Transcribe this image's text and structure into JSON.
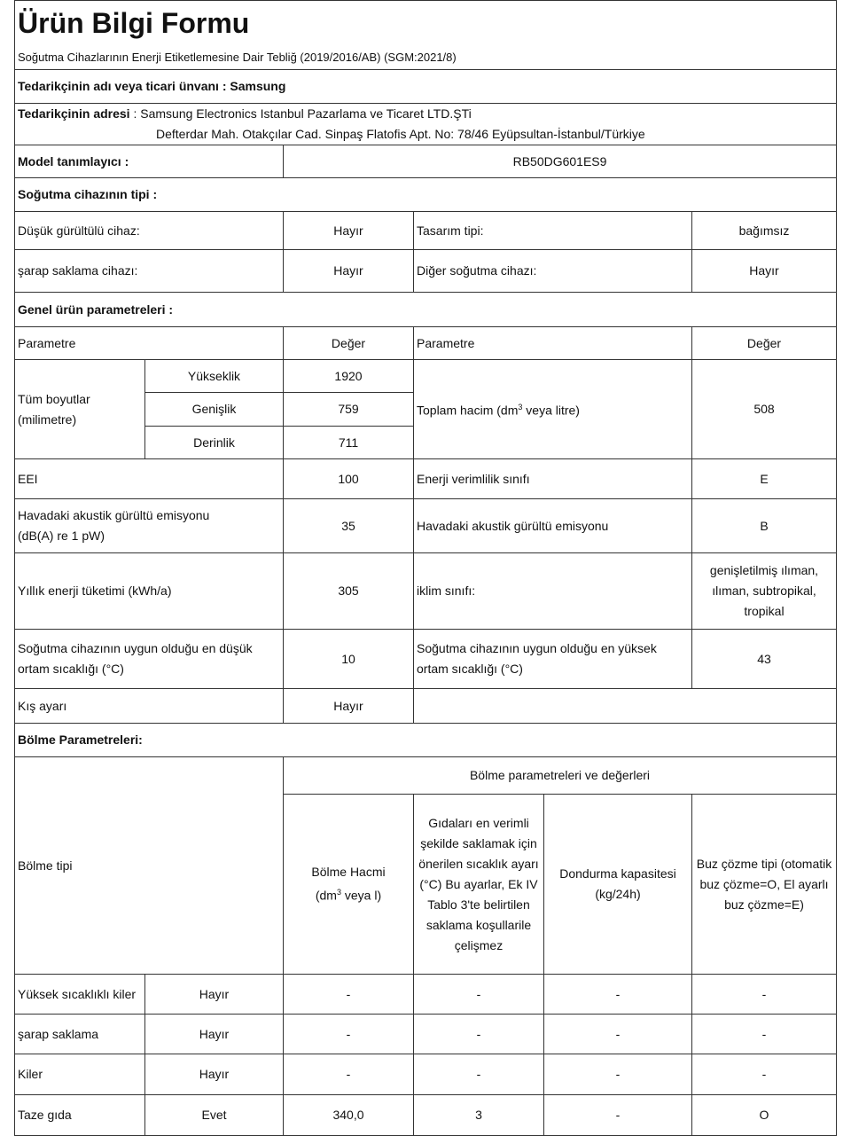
{
  "title": "Ürün Bilgi Formu",
  "subtitle": "Soğutma Cihazlarının Enerji Etiketlemesine Dair Tebliğ (2019/2016/AB) (SGM:2021/8)",
  "supplier_name": "Tedarikçinin adı veya ticari ünvanı : Samsung",
  "supplier_address_label": "Tedarikçinin adresi",
  "supplier_address_line1": " : Samsung Electronics Istanbul Pazarlama ve Ticaret LTD.ŞTi",
  "supplier_address_line2": "Defterdar Mah. Otakçılar Cad. Sinpaş Flatofis Apt. No: 78/46 Eyüpsultan-İstanbul/Türkiye",
  "model_label": "Model tanımlayıcı :",
  "model_value": "RB50DG601ES9",
  "type_header": "Soğutma cihazının tipi :",
  "type": {
    "low_noise_label": "Düşük gürültülü cihaz:",
    "low_noise": "Hayır",
    "design_label": "Tasarım tipi:",
    "design": "bağımsız",
    "wine_label": "şarap saklama cihazı:",
    "wine": "Hayır",
    "other_label": "Diğer soğutma cihazı:",
    "other": "Hayır"
  },
  "general_header": "Genel ürün parametreleri :",
  "general": {
    "param": "Parametre",
    "value": "Değer",
    "dims_label": "Tüm boyutlar",
    "dims_unit": "(milimetre)",
    "height_label": "Yükseklik",
    "height": "1920",
    "width_label": "Genişlik",
    "width": "759",
    "depth_label": "Derinlik",
    "depth": "711",
    "volume_label": "Toplam hacim (dm",
    "volume_label2": " veya litre)",
    "volume": "508",
    "eei_label": "EEI",
    "eei": "100",
    "class_label": "Enerji verimlilik sınıfı",
    "class": "E",
    "noise_label1": "Havadaki akustik gürültü emisyonu",
    "noise_label2": "(dB(A) re 1 pW)",
    "noise": "35",
    "noise_class_label": "Havadaki akustik gürültü emisyonu",
    "noise_class": "B",
    "annual_label": "Yıllık enerji tüketimi (kWh/a)",
    "annual": "305",
    "climate_label": "iklim sınıfı:",
    "climate": "genişletilmiş ılıman, ılıman, subtropikal, tropikal",
    "min_temp_label": "Soğutma cihazının uygun olduğu en düşük ortam sıcaklığı (°C)",
    "min_temp": "10",
    "max_temp_label": "Soğutma cihazının uygun olduğu en yüksek ortam sıcaklığı (°C)",
    "max_temp": "43",
    "winter_label": "Kış ayarı",
    "winter": "Hayır"
  },
  "compartment_header": "Bölme Parametreleri:",
  "compartment": {
    "type_label": "Bölme tipi",
    "group_header": "Bölme parametreleri ve değerleri",
    "col_volume": "Bölme Hacmi",
    "col_volume2": " veya l)",
    "col_temp": "Gıdaları en verimli şekilde saklamak için önerilen sıcaklık ayarı (°C) Bu ayarlar, Ek IV Tablo 3'te belirtilen saklama koşullarile çelişmez",
    "col_freeze": "Dondurma kapasitesi (kg/24h)",
    "col_defrost": "Buz çözme tipi (otomatik buz çözme=O, El ayarlı buz çözme=E)",
    "rows": [
      {
        "name": "Yüksek sıcaklıklı kiler",
        "present": "Hayır",
        "volume": "-",
        "temp": "-",
        "freeze": "-",
        "defrost": "-"
      },
      {
        "name": "şarap saklama",
        "present": "Hayır",
        "volume": "-",
        "temp": "-",
        "freeze": "-",
        "defrost": "-"
      },
      {
        "name": "Kiler",
        "present": "Hayır",
        "volume": "-",
        "temp": "-",
        "freeze": "-",
        "defrost": "-"
      },
      {
        "name": "Taze gıda",
        "present": "Evet",
        "volume": "340,0",
        "temp": "3",
        "freeze": "-",
        "defrost": "O"
      }
    ]
  }
}
